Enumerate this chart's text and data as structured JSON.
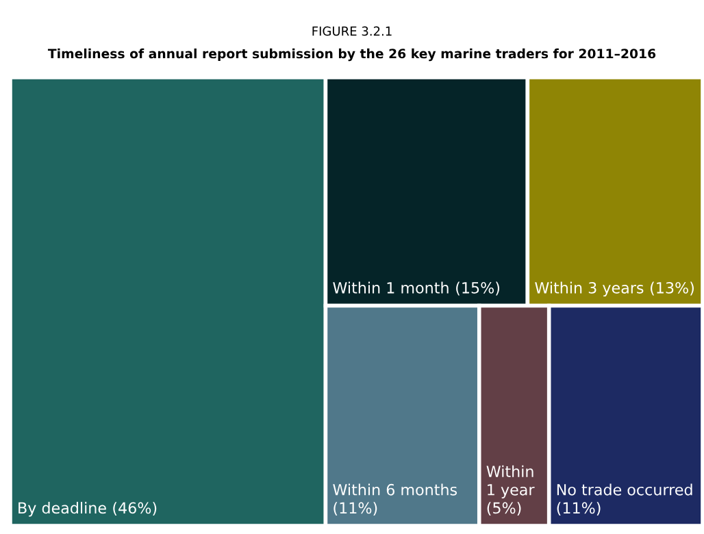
{
  "chart_data": {
    "type": "other",
    "title": "FIGURE 3.2.1",
    "subtitle": "Timeliness of annual report submission by the 26 key marine traders for 2011–2016",
    "categories": [
      "By deadline",
      "Within 1 month",
      "Within 3 years",
      "Within 6 months",
      "Within 1 year",
      "No trade occurred"
    ],
    "value_labels": [
      "(46%)",
      "(15%)",
      "(13%)",
      "(11%)",
      "(5%)",
      "(11%)"
    ],
    "values": [
      46,
      15,
      13,
      11,
      5,
      11
    ],
    "colors": [
      "#1f6560",
      "#052428",
      "#8f8505",
      "#50788a",
      "#623f46",
      "#1d2a63"
    ]
  }
}
